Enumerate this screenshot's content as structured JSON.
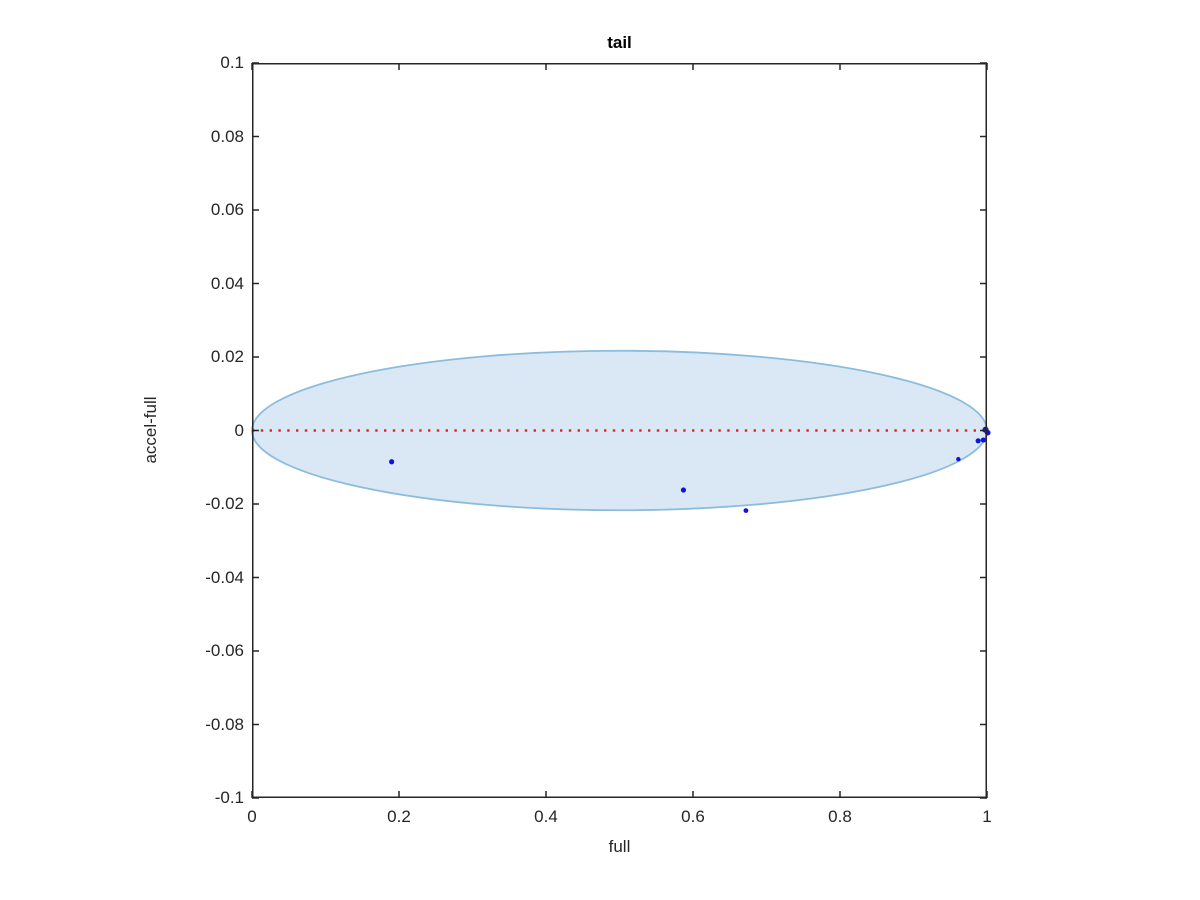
{
  "figure": {
    "background": "#ffffff",
    "axis_color": "#262626",
    "text_color": "#262626"
  },
  "chart_data": {
    "type": "scatter",
    "title": "tail",
    "xlabel": "full",
    "ylabel": "accel-full",
    "xlim": [
      0,
      1
    ],
    "ylim": [
      -0.1,
      0.1
    ],
    "grid": false,
    "box": true,
    "xticks": [
      0,
      0.2,
      0.4,
      0.6,
      0.8,
      1
    ],
    "xtick_labels": [
      "0",
      "0.2",
      "0.4",
      "0.6",
      "0.8",
      "1"
    ],
    "yticks": [
      0.1,
      0.08,
      0.06,
      0.04,
      0.02,
      0,
      -0.02,
      -0.04,
      -0.06,
      -0.08,
      -0.1
    ],
    "ytick_labels": [
      "0.1",
      "0.08",
      "0.06",
      "0.04",
      "0.02",
      "0",
      "-0.02",
      "-0.04",
      "-0.06",
      "-0.08",
      "-0.1"
    ],
    "ellipse": {
      "cx": 0.5,
      "cy": 0.0,
      "rx": 0.5,
      "ry": 0.0217,
      "fill": "#d9e8f4",
      "edge": "#8cbcdd"
    },
    "zero_line": {
      "y": 0,
      "color": "#e8261f",
      "style": "dotted"
    },
    "marker_color": "#1212dd",
    "points": [
      {
        "x": 0.19,
        "y": -0.0085,
        "r": 2.6
      },
      {
        "x": 0.587,
        "y": -0.0162,
        "r": 2.6
      },
      {
        "x": 0.672,
        "y": -0.0218,
        "r": 2.4
      },
      {
        "x": 0.961,
        "y": -0.0078,
        "r": 2.2
      },
      {
        "x": 0.988,
        "y": -0.0028,
        "r": 2.6
      },
      {
        "x": 0.995,
        "y": -0.0026,
        "r": 2.6
      },
      {
        "x": 0.998,
        "y": 0.0002,
        "r": 3.1
      },
      {
        "x": 1.001,
        "y": -0.0006,
        "r": 2.8
      }
    ]
  }
}
